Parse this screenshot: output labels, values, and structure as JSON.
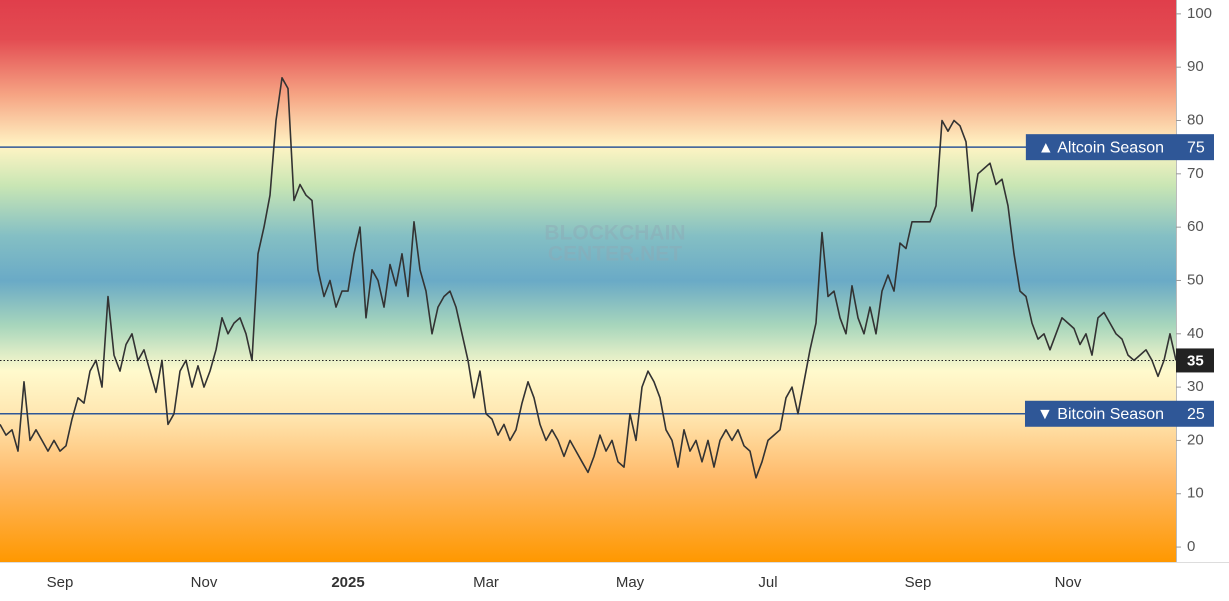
{
  "chart_data": {
    "type": "line",
    "watermark": [
      "BLOCKCHAIN",
      "CENTER.NET"
    ],
    "categories": [
      null,
      null,
      null,
      null,
      null,
      null,
      null,
      null,
      null,
      null,
      "Sep",
      null,
      null,
      null,
      null,
      null,
      null,
      null,
      null,
      null,
      null,
      null,
      null,
      null,
      null,
      null,
      null,
      null,
      null,
      null,
      null,
      null,
      null,
      null,
      "Nov",
      null,
      null,
      null,
      null,
      null,
      null,
      null,
      null,
      null,
      null,
      null,
      null,
      null,
      null,
      null,
      null,
      null,
      null,
      null,
      null,
      null,
      null,
      null,
      "2025",
      null,
      null,
      null,
      null,
      null,
      null,
      null,
      null,
      null,
      null,
      null,
      null,
      null,
      null,
      null,
      null,
      null,
      null,
      null,
      null,
      null,
      null,
      "Mar",
      null,
      null,
      null,
      null,
      null,
      null,
      null,
      null,
      null,
      null,
      null,
      null,
      null,
      null,
      null,
      null,
      null,
      null,
      null,
      null,
      null,
      null,
      null,
      "May",
      null,
      null,
      null,
      null,
      null,
      null,
      null,
      null,
      null,
      null,
      null,
      null,
      null,
      null,
      null,
      null,
      null,
      null,
      null,
      null,
      null,
      null,
      "Jul",
      null,
      null,
      null,
      null,
      null,
      null,
      null,
      null,
      null,
      null,
      null,
      null,
      null,
      null,
      null,
      null,
      null,
      null,
      null,
      null,
      null,
      null,
      null,
      null,
      "Sep",
      null,
      null,
      null,
      null,
      null,
      null,
      null,
      null,
      null,
      null,
      null,
      null,
      null,
      null,
      null,
      null,
      null,
      null,
      null,
      null,
      null,
      null,
      null,
      null,
      "Nov",
      null,
      null,
      null,
      null,
      null,
      null,
      null,
      null,
      null,
      null,
      null,
      null,
      null,
      null,
      null,
      null,
      null,
      null
    ],
    "values": [
      23,
      21,
      22,
      18,
      31,
      20,
      22,
      20,
      18,
      20,
      18,
      19,
      24,
      28,
      27,
      33,
      35,
      30,
      47,
      36,
      33,
      38,
      40,
      35,
      37,
      33,
      29,
      35,
      23,
      25,
      33,
      35,
      30,
      34,
      30,
      33,
      37,
      43,
      40,
      42,
      43,
      40,
      35,
      55,
      60,
      66,
      80,
      88,
      86,
      65,
      68,
      66,
      65,
      52,
      47,
      50,
      45,
      48,
      48,
      55,
      60,
      43,
      52,
      50,
      45,
      53,
      49,
      55,
      47,
      61,
      52,
      48,
      40,
      45,
      47,
      48,
      45,
      40,
      35,
      28,
      33,
      25,
      24,
      21,
      23,
      20,
      22,
      27,
      31,
      28,
      23,
      20,
      22,
      20,
      17,
      20,
      18,
      16,
      14,
      17,
      21,
      18,
      20,
      16,
      15,
      25,
      20,
      30,
      33,
      31,
      28,
      22,
      20,
      15,
      22,
      18,
      20,
      16,
      20,
      15,
      20,
      22,
      20,
      22,
      19,
      18,
      13,
      16,
      20,
      21,
      22,
      28,
      30,
      25,
      31,
      37,
      42,
      59,
      47,
      48,
      43,
      40,
      49,
      43,
      40,
      45,
      40,
      48,
      51,
      48,
      57,
      56,
      61,
      61,
      61,
      61,
      64,
      80,
      78,
      80,
      79,
      76,
      63,
      70,
      71,
      72,
      68,
      69,
      64,
      55,
      48,
      47,
      42,
      39,
      40,
      37,
      40,
      43,
      42,
      41,
      38,
      40,
      36,
      43,
      44,
      42,
      40,
      39,
      36,
      35,
      36,
      37,
      35,
      32,
      35,
      40,
      35
    ],
    "color": "#333333",
    "ylim": [
      -2.8,
      102.6
    ],
    "yticks": [
      0,
      10,
      20,
      30,
      40,
      50,
      60,
      70,
      80,
      90,
      100
    ],
    "reference_lines": [
      {
        "value": 75,
        "label": "▲ Altcoin Season",
        "color": "#2f5797"
      },
      {
        "value": 25,
        "label": "▼ Bitcoin Season",
        "color": "#2f5797"
      }
    ]
  }
}
